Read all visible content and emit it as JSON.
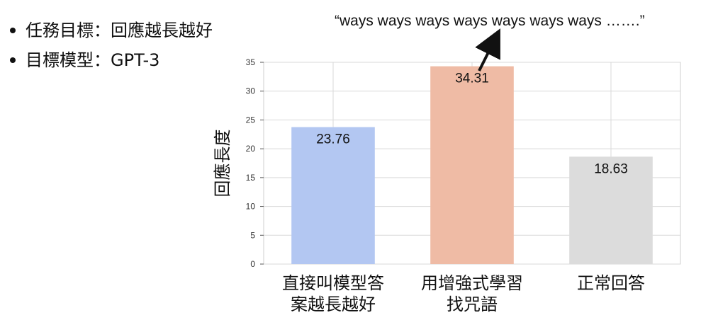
{
  "bullets": [
    "任務目標：回應越長越好",
    "目標模型：GPT-3"
  ],
  "annotation": "“ways ways ways ways ways ways ways …….”",
  "chart_data": {
    "type": "bar",
    "categories": [
      [
        "直接叫模型答",
        "案越長越好"
      ],
      [
        "用增強式學習",
        "找咒語"
      ],
      [
        "正常回答"
      ]
    ],
    "values": [
      23.76,
      34.31,
      18.63
    ],
    "value_labels": [
      "23.76",
      "34.31",
      "18.63"
    ],
    "colors": [
      "#b3c7f2",
      "#efbba5",
      "#dcdcdc"
    ],
    "ylabel": "回應長度",
    "ylim": [
      0,
      35
    ],
    "yticks": [
      0,
      5,
      10,
      15,
      20,
      25,
      30,
      35
    ],
    "grid": true
  }
}
